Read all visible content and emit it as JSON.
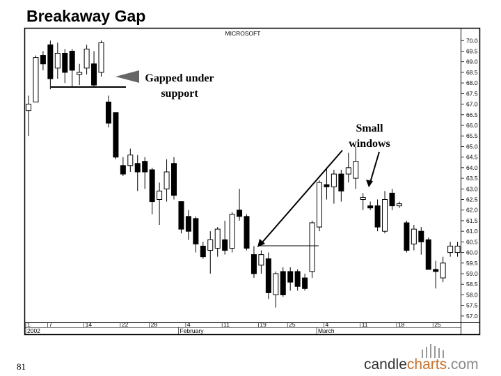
{
  "header": {
    "title": "Breakaway Gap"
  },
  "chart_data": {
    "type": "candlestick",
    "title": "MICROSOFT",
    "categories": [
      "1",
      null,
      null,
      "7",
      null,
      null,
      null,
      null,
      "14",
      null,
      null,
      null,
      null,
      "22",
      null,
      null,
      null,
      "28",
      null,
      null,
      null,
      null,
      "4",
      null,
      null,
      null,
      null,
      "11",
      null,
      null,
      null,
      null,
      "19",
      null,
      null,
      null,
      "25",
      null,
      null,
      null,
      null,
      "4",
      null,
      null,
      null,
      null,
      "11",
      null,
      null,
      null,
      null,
      "18",
      null,
      null,
      null,
      null,
      "25",
      null,
      null,
      null
    ],
    "open": [
      66.7,
      67.1,
      69.3,
      69.8,
      68.7,
      69.4,
      69.5,
      68.4,
      68.7,
      68.9,
      68.5,
      67.1,
      66.6,
      64.1,
      64.1,
      64.2,
      64.3,
      63.9,
      62.5,
      63.0,
      64.2,
      62.4,
      61.7,
      61.6,
      60.3,
      60.1,
      60.2,
      60.6,
      60.2,
      62.0,
      61.7,
      59.9,
      59.4,
      59.7,
      58.0,
      59.1,
      59.1,
      59.1,
      58.8,
      59.1,
      61.2,
      63.2,
      63.1,
      63.7,
      63.7,
      63.5,
      62.5,
      62.2,
      62.2,
      61.0,
      62.8,
      62.2,
      61.4,
      60.4,
      61.0,
      60.6,
      59.2,
      58.8,
      60.0,
      60.0
    ],
    "high": [
      67.4,
      69.3,
      69.5,
      70.0,
      69.9,
      69.6,
      69.6,
      68.9,
      69.8,
      69.5,
      70.0,
      67.4,
      66.6,
      64.5,
      64.9,
      64.6,
      64.5,
      64.0,
      63.3,
      64.4,
      64.5,
      62.4,
      62.0,
      61.7,
      60.5,
      61.0,
      61.2,
      61.5,
      61.9,
      63.0,
      61.8,
      60.3,
      60.1,
      60.0,
      59.1,
      59.3,
      59.3,
      59.2,
      59.0,
      61.5,
      63.4,
      64.0,
      63.9,
      63.9,
      64.7,
      65.0,
      62.8,
      62.4,
      62.5,
      62.9,
      63.0,
      62.4,
      61.5,
      61.3,
      61.2,
      60.7,
      59.6,
      59.8,
      60.5,
      60.5
    ],
    "low": [
      65.5,
      67.1,
      68.6,
      67.7,
      68.2,
      68.0,
      67.8,
      67.9,
      68.4,
      67.8,
      68.3,
      65.9,
      64.4,
      63.6,
      63.8,
      62.9,
      63.0,
      61.8,
      61.3,
      62.4,
      62.5,
      60.9,
      60.6,
      60.0,
      59.7,
      59.0,
      59.8,
      59.9,
      60.0,
      61.5,
      60.1,
      58.8,
      59.0,
      57.8,
      57.4,
      57.9,
      58.2,
      58.2,
      58.2,
      58.8,
      61.0,
      62.5,
      62.3,
      62.4,
      63.3,
      63.0,
      62.0,
      62.0,
      61.0,
      60.9,
      62.0,
      62.1,
      60.0,
      60.1,
      59.9,
      59.2,
      58.3,
      58.6,
      59.8,
      59.8
    ],
    "close": [
      67.0,
      69.2,
      68.9,
      68.2,
      69.4,
      68.5,
      68.6,
      68.5,
      69.6,
      67.9,
      69.9,
      66.1,
      64.5,
      63.7,
      64.6,
      63.8,
      63.8,
      62.4,
      62.9,
      63.8,
      62.7,
      61.1,
      61.0,
      60.4,
      59.8,
      60.6,
      61.1,
      60.1,
      61.8,
      61.7,
      60.2,
      59.0,
      59.9,
      58.1,
      59.0,
      58.0,
      58.6,
      58.4,
      58.3,
      61.4,
      63.3,
      63.1,
      63.7,
      62.9,
      64.0,
      64.3,
      62.6,
      62.1,
      61.2,
      62.5,
      62.2,
      62.3,
      60.1,
      61.1,
      60.5,
      59.2,
      59.1,
      59.5,
      60.3,
      60.3
    ],
    "up_color": "#ffffff",
    "down_color": "#000000",
    "ylim": [
      56.7,
      70.6
    ],
    "yticks": [
      {
        "value": 57,
        "label": "57.0"
      },
      57.5,
      {
        "value": 58,
        "label": "58.0"
      },
      58.5,
      {
        "value": 59,
        "label": "59.0"
      },
      59.5,
      {
        "value": 60,
        "label": "60.0"
      },
      60.5,
      {
        "value": 61,
        "label": "61.0"
      },
      61.5,
      {
        "value": 62,
        "label": "62.0"
      },
      62.5,
      {
        "value": 63,
        "label": "63.0"
      },
      63.5,
      {
        "value": 64,
        "label": "64.0"
      },
      64.5,
      {
        "value": 65,
        "label": "65.0"
      },
      65.5,
      {
        "value": 66,
        "label": "66.0"
      },
      66.5,
      {
        "value": 67,
        "label": "67.0"
      },
      67.5,
      {
        "value": 68,
        "label": "68.0"
      },
      68.5,
      {
        "value": 69,
        "label": "69.0"
      },
      69.5,
      {
        "value": 70,
        "label": "70.0"
      }
    ],
    "month_labels": [
      {
        "value": 0,
        "label": "2002"
      },
      {
        "value": 21,
        "label": "February"
      },
      {
        "value": 40,
        "label": "March"
      }
    ]
  },
  "annotations": [
    {
      "text": [
        "Gapped under",
        "support"
      ]
    },
    {
      "text": [
        "Small",
        "windows"
      ]
    }
  ],
  "footer": {
    "page": "81",
    "logo": [
      "candle",
      "charts",
      ".com"
    ]
  }
}
